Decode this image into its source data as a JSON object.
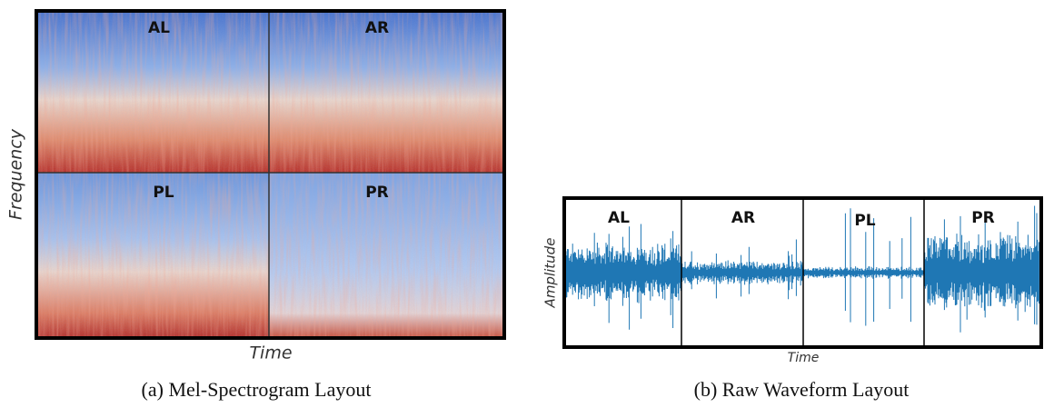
{
  "panel_a": {
    "labels": [
      "AL",
      "AR",
      "PL",
      "PR"
    ],
    "y_label": "Frequency",
    "x_label": "Time",
    "caption": "(a) Mel-Spectrogram Layout"
  },
  "panel_b": {
    "labels": [
      "AL",
      "AR",
      "PL",
      "PR"
    ],
    "y_label": "Amplitude",
    "x_label": "Time",
    "caption": "(b) Raw Waveform Layout"
  }
}
